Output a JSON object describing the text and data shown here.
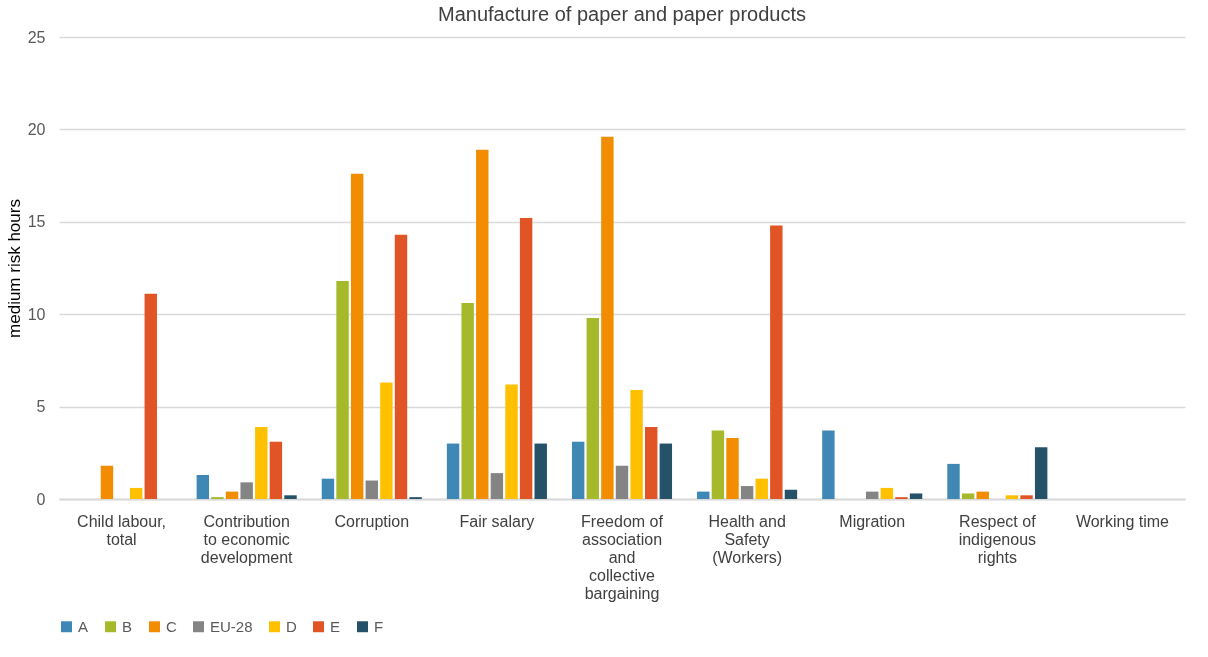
{
  "chart_data": {
    "type": "bar",
    "title": "Manufacture of paper and paper products",
    "ylabel": "medium risk hours",
    "categories": [
      "Child labour, total",
      "Contribution to economic development",
      "Corruption",
      "Fair salary",
      "Freedom of association and collective bargaining",
      "Health and Safety (Workers)",
      "Migration",
      "Respect of indigenous rights",
      "Working time"
    ],
    "series": [
      {
        "name": "A",
        "color": "#3f88b5",
        "values": [
          0,
          1.3,
          1.1,
          3.0,
          3.1,
          0.4,
          3.7,
          1.9,
          0
        ]
      },
      {
        "name": "B",
        "color": "#a6b92a",
        "values": [
          0,
          0.1,
          11.8,
          10.6,
          9.8,
          3.7,
          0,
          0.3,
          0
        ]
      },
      {
        "name": "C",
        "color": "#f28c00",
        "values": [
          1.8,
          0.4,
          17.6,
          18.9,
          19.6,
          3.3,
          0,
          0.4,
          0
        ]
      },
      {
        "name": "EU-28",
        "color": "#848484",
        "values": [
          0,
          0.9,
          1.0,
          1.4,
          1.8,
          0.7,
          0.4,
          0,
          0
        ]
      },
      {
        "name": "D",
        "color": "#ffc000",
        "values": [
          0.6,
          3.9,
          6.3,
          6.2,
          5.9,
          1.1,
          0.6,
          0.2,
          0
        ]
      },
      {
        "name": "E",
        "color": "#e05426",
        "values": [
          11.1,
          3.1,
          14.3,
          15.2,
          3.9,
          14.8,
          0.1,
          0.2,
          0
        ]
      },
      {
        "name": "F",
        "color": "#255169",
        "values": [
          0,
          0.2,
          0.1,
          3.0,
          3.0,
          0.5,
          0.3,
          2.8,
          0
        ]
      }
    ],
    "ylim": [
      0,
      25
    ],
    "yticks": [
      0,
      5,
      10,
      15,
      20,
      25
    ],
    "grid": "y",
    "legend": "bottom"
  }
}
